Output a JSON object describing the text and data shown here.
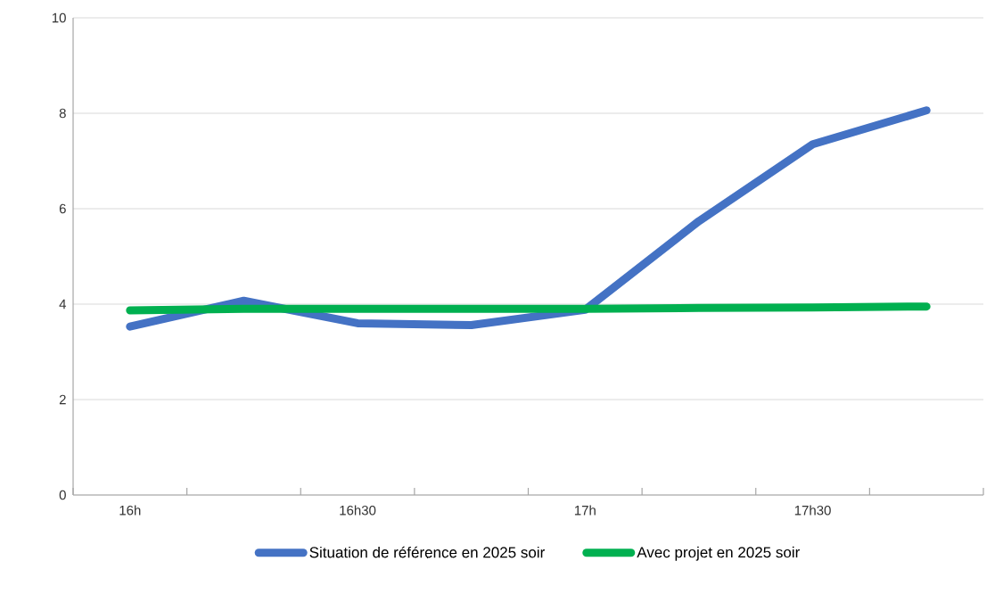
{
  "chart_data": {
    "type": "line",
    "categories": [
      "16h",
      null,
      "16h30",
      null,
      "17h",
      null,
      "17h30",
      null
    ],
    "series": [
      {
        "name": "Situation de référence en 2025 soir",
        "color": "#4472c4",
        "values": [
          3.53,
          4.07,
          3.6,
          3.56,
          3.88,
          5.74,
          7.35,
          8.06
        ]
      },
      {
        "name": "Avec projet en 2025 soir",
        "color": "#00b050",
        "values": [
          3.87,
          3.9,
          3.9,
          3.9,
          3.9,
          3.92,
          3.93,
          3.95
        ]
      }
    ],
    "ylim": [
      0,
      10
    ],
    "yticks": [
      0,
      2,
      4,
      6,
      8,
      10
    ],
    "grid": "y",
    "legend": "bottom",
    "marker": "none",
    "line_style": "solid"
  }
}
